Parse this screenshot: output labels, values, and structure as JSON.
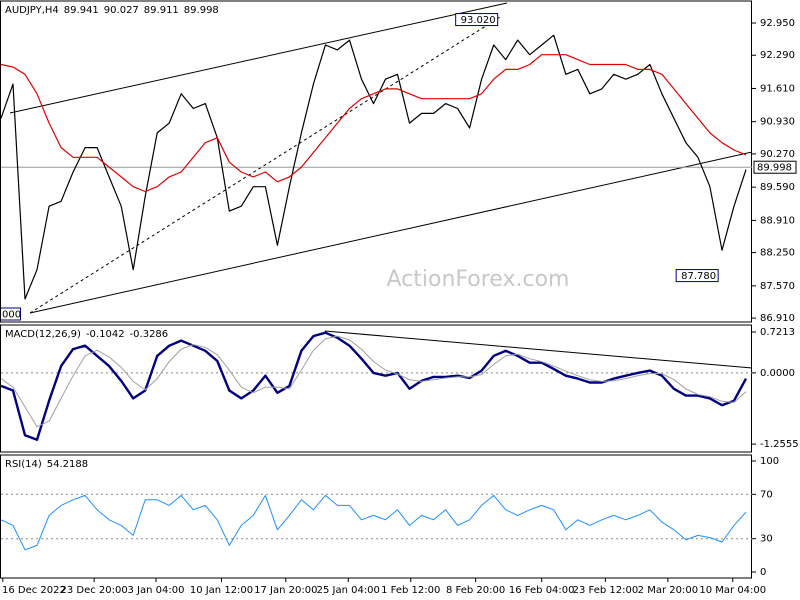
{
  "chart_data": [
    {
      "type": "line",
      "title": "AUDJPY,H4",
      "readout": [
        89.941,
        90.027,
        89.911,
        89.998
      ],
      "x": [
        0,
        2,
        4,
        6,
        8,
        10,
        12,
        14,
        16,
        18,
        20,
        22,
        24,
        26,
        28,
        30,
        32,
        34,
        36,
        38,
        40,
        42,
        44,
        46,
        48,
        50,
        52,
        54,
        56,
        58,
        60,
        62,
        64,
        66,
        68,
        70,
        72,
        74,
        76,
        78,
        80,
        82,
        84,
        86,
        88,
        90,
        92,
        94,
        96,
        98,
        100,
        102,
        104,
        106,
        108,
        110,
        112,
        114,
        116,
        118,
        120,
        122,
        124
      ],
      "series": [
        {
          "color": "#000000",
          "values": [
            91.0,
            91.7,
            87.3,
            87.9,
            89.2,
            89.3,
            89.9,
            90.4,
            90.4,
            89.8,
            89.2,
            87.9,
            89.4,
            90.7,
            90.9,
            91.5,
            91.2,
            91.3,
            90.6,
            89.1,
            89.2,
            89.6,
            89.6,
            88.4,
            89.6,
            90.7,
            91.7,
            92.5,
            92.4,
            92.6,
            91.8,
            91.3,
            91.8,
            91.9,
            90.9,
            91.1,
            91.1,
            91.3,
            91.2,
            90.8,
            91.8,
            92.5,
            92.2,
            92.6,
            92.3,
            92.5,
            92.7,
            91.9,
            92.0,
            91.5,
            91.6,
            91.9,
            91.8,
            91.9,
            92.1,
            91.5,
            91.0,
            90.5,
            90.2,
            89.6,
            88.3,
            89.2,
            89.95
          ]
        },
        {
          "color": "#e00000",
          "values": [
            92.1,
            92.05,
            91.9,
            91.5,
            90.9,
            90.4,
            90.2,
            90.2,
            90.2,
            90.0,
            89.8,
            89.6,
            89.5,
            89.6,
            89.8,
            89.9,
            90.2,
            90.5,
            90.6,
            90.1,
            89.9,
            89.8,
            89.9,
            89.7,
            89.8,
            90.0,
            90.3,
            90.6,
            90.9,
            91.2,
            91.4,
            91.5,
            91.6,
            91.6,
            91.5,
            91.4,
            91.4,
            91.4,
            91.4,
            91.4,
            91.5,
            91.8,
            92.0,
            92.0,
            92.1,
            92.3,
            92.3,
            92.3,
            92.2,
            92.1,
            92.1,
            92.1,
            92.1,
            92.0,
            92.0,
            91.9,
            91.6,
            91.3,
            91.0,
            90.7,
            90.5,
            90.35,
            90.25
          ]
        }
      ],
      "annotations": [
        {
          "x": 83,
          "value": 93.02,
          "label": "93.020"
        },
        {
          "x": 119.7,
          "value": 87.78,
          "label": "87.780"
        }
      ],
      "last": {
        "value": 89.998,
        "label": "89.998"
      },
      "cut_label": "000",
      "watermark": "ActionForex.com",
      "xlim": [
        0,
        125
      ],
      "ylim": [
        86.83,
        93.4
      ],
      "grid": false,
      "yticks": [
        {
          "value": 92.95,
          "label": "92.950"
        },
        {
          "value": 92.29,
          "label": "92.290"
        },
        {
          "value": 91.61,
          "label": "91.610"
        },
        {
          "value": 90.93,
          "label": "90.930"
        },
        {
          "value": 90.27,
          "label": "90.270"
        },
        {
          "value": 89.59,
          "label": "89.590"
        },
        {
          "value": 88.91,
          "label": "88.910"
        },
        {
          "value": 88.25,
          "label": "88.250"
        },
        {
          "value": 87.57,
          "label": "87.570"
        },
        {
          "value": 86.91,
          "label": "86.910"
        }
      ]
    },
    {
      "type": "line",
      "title": "MACD(12,26,9)",
      "readout": [
        -0.1042,
        -0.3286
      ],
      "x": [
        0,
        2,
        4,
        6,
        8,
        10,
        12,
        14,
        16,
        18,
        20,
        22,
        24,
        26,
        28,
        30,
        32,
        34,
        36,
        38,
        40,
        42,
        44,
        46,
        48,
        50,
        52,
        54,
        56,
        58,
        60,
        62,
        64,
        66,
        68,
        70,
        72,
        74,
        76,
        78,
        80,
        82,
        84,
        86,
        88,
        90,
        92,
        94,
        96,
        98,
        100,
        102,
        104,
        106,
        108,
        110,
        112,
        114,
        116,
        118,
        120,
        122,
        124
      ],
      "series": [
        {
          "color": "#000080",
          "width": 2.4,
          "values": [
            -0.23,
            -0.31,
            -1.1,
            -1.18,
            -0.49,
            0.12,
            0.42,
            0.48,
            0.3,
            0.12,
            -0.14,
            -0.45,
            -0.31,
            0.3,
            0.48,
            0.57,
            0.48,
            0.39,
            0.21,
            -0.31,
            -0.45,
            -0.31,
            -0.05,
            -0.35,
            -0.23,
            0.39,
            0.65,
            0.71,
            0.62,
            0.48,
            0.25,
            0,
            -0.05,
            0,
            -0.28,
            -0.14,
            -0.07,
            -0.07,
            -0.05,
            -0.09,
            0.04,
            0.3,
            0.39,
            0.3,
            0.18,
            0.18,
            0.07,
            -0.05,
            -0.1,
            -0.17,
            -0.17,
            -0.1,
            -0.05,
            0,
            0.04,
            -0.05,
            -0.28,
            -0.4,
            -0.4,
            -0.45,
            -0.57,
            -0.49,
            -0.1
          ]
        },
        {
          "color": "#a0a0a0",
          "width": 1,
          "values": [
            -0.1,
            -0.25,
            -0.6,
            -0.95,
            -0.85,
            -0.45,
            -0.05,
            0.3,
            0.4,
            0.28,
            0.1,
            -0.15,
            -0.3,
            -0.1,
            0.2,
            0.42,
            0.5,
            0.45,
            0.32,
            0.05,
            -0.25,
            -0.35,
            -0.25,
            -0.25,
            -0.28,
            0.05,
            0.4,
            0.6,
            0.65,
            0.58,
            0.42,
            0.2,
            0.05,
            -0.02,
            -0.12,
            -0.15,
            -0.12,
            -0.09,
            -0.07,
            -0.07,
            -0.03,
            0.15,
            0.3,
            0.33,
            0.25,
            0.2,
            0.12,
            0.03,
            -0.05,
            -0.12,
            -0.15,
            -0.14,
            -0.1,
            -0.05,
            -0.01,
            -0.01,
            -0.12,
            -0.28,
            -0.38,
            -0.42,
            -0.5,
            -0.52,
            -0.33
          ]
        }
      ],
      "xlim": [
        0,
        125
      ],
      "ylim": [
        -1.395,
        0.845
      ],
      "grid": true,
      "yticks": [
        0.7213,
        {
          "value": 0,
          "label": "0.0000"
        },
        -1.2555
      ]
    },
    {
      "type": "line",
      "title": "RSI(14)",
      "readout": [
        54.2188
      ],
      "x": [
        0,
        2,
        4,
        6,
        8,
        10,
        12,
        14,
        16,
        18,
        20,
        22,
        24,
        26,
        28,
        30,
        32,
        34,
        36,
        38,
        40,
        42,
        44,
        46,
        48,
        50,
        52,
        54,
        56,
        58,
        60,
        62,
        64,
        66,
        68,
        70,
        72,
        74,
        76,
        78,
        80,
        82,
        84,
        86,
        88,
        90,
        92,
        94,
        96,
        98,
        100,
        102,
        104,
        106,
        108,
        110,
        112,
        114,
        116,
        118,
        120,
        122,
        124
      ],
      "series": [
        {
          "color": "#1e90ff",
          "width": 1,
          "values": [
            47,
            42,
            20,
            24,
            51,
            60,
            65,
            69,
            56,
            47,
            42,
            33,
            65,
            65,
            60,
            69,
            56,
            60,
            47,
            24,
            42,
            51,
            69,
            38,
            51,
            65,
            56,
            69,
            60,
            60,
            47,
            51,
            47,
            56,
            42,
            51,
            47,
            56,
            42,
            47,
            60,
            69,
            56,
            51,
            56,
            60,
            56,
            38,
            47,
            42,
            47,
            51,
            47,
            51,
            56,
            45,
            38,
            29,
            33,
            31,
            27,
            42,
            54
          ]
        }
      ],
      "xlim": [
        0,
        125
      ],
      "ylim": [
        -5.4,
        105.4
      ],
      "grid": true,
      "yticks": [
        100,
        70,
        30,
        0
      ],
      "xticks": [
        {
          "value": 0.3,
          "label": "16 Dec 2022"
        },
        {
          "value": 15.5,
          "label": "23 Dec 20:00"
        },
        {
          "value": 25.8,
          "label": "3 Jan 04:00"
        },
        {
          "value": 36.7,
          "label": "10 Jan 12:00"
        },
        {
          "value": 47.4,
          "label": "17 Jan 20:00"
        },
        {
          "value": 57.8,
          "label": "25 Jan 04:00"
        },
        {
          "value": 68.2,
          "label": "1 Feb 12:00"
        },
        {
          "value": 79,
          "label": "8 Feb 20:00"
        },
        {
          "value": 90,
          "label": "16 Feb 04:00"
        },
        {
          "value": 100.6,
          "label": "23 Feb 12:00"
        },
        {
          "value": 111,
          "label": "2 Mar 20:00"
        },
        {
          "value": 121.8,
          "label": "10 Mar 04:00"
        }
      ]
    }
  ]
}
